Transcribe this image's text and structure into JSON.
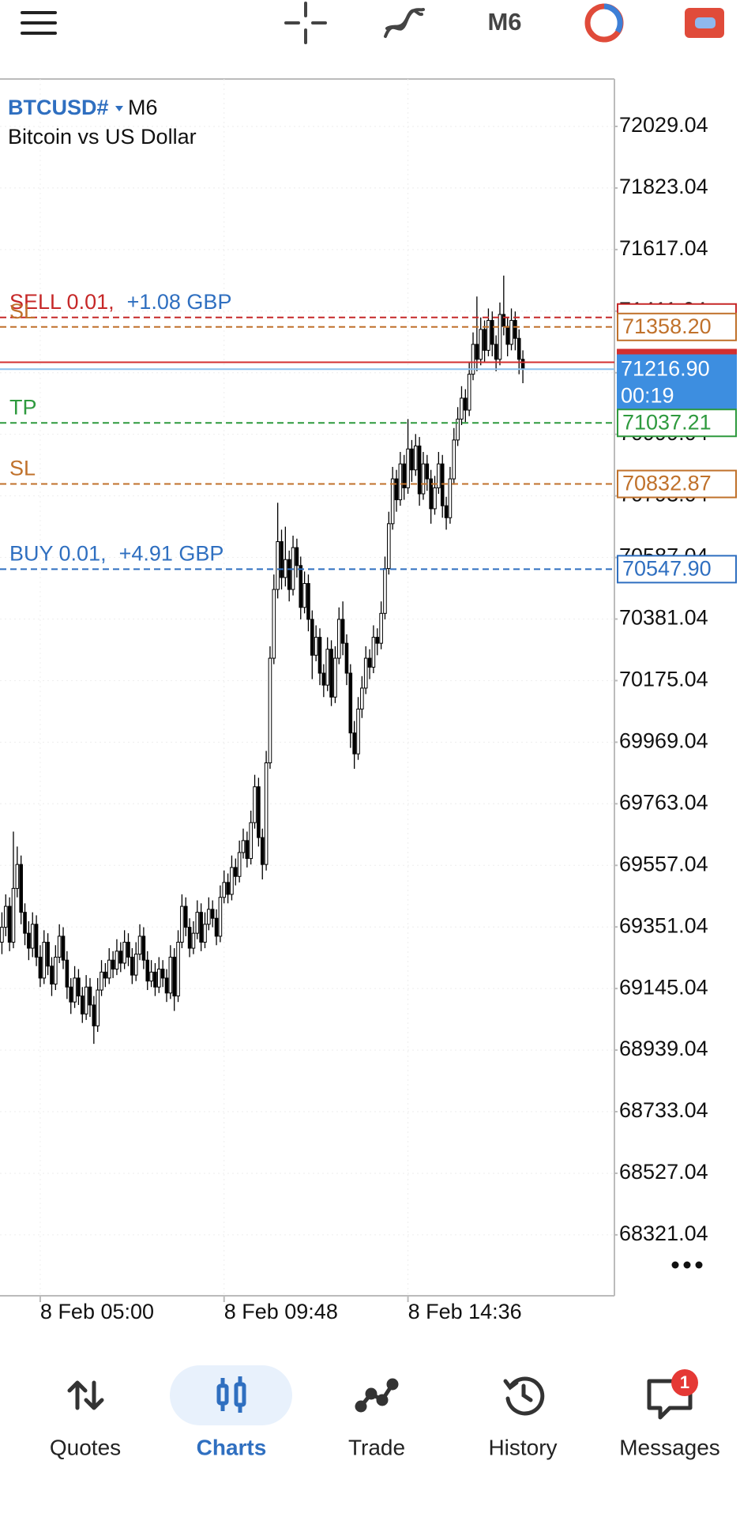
{
  "top_bar": {
    "timeframe": "M6"
  },
  "chart_data": {
    "type": "candlestick",
    "symbol": "BTCUSD#",
    "timeframe": "M6",
    "description": "Bitcoin vs US Dollar",
    "xlim": [
      -0.5,
      159.9
    ],
    "xticks": [
      {
        "value": 10,
        "label": "8 Feb 05:00"
      },
      {
        "value": 58,
        "label": "8 Feb 09:48"
      },
      {
        "value": 106,
        "label": "8 Feb 14:36"
      }
    ],
    "ylim": [
      68117.2,
      72187.6
    ],
    "yticks": [
      72029.04,
      71823.04,
      71617.04,
      71411.04,
      71205.04,
      70999.04,
      70793.04,
      70587.04,
      70381.04,
      70175.04,
      69969.04,
      69763.04,
      69557.04,
      69351.04,
      69145.04,
      68939.04,
      68733.04,
      68527.04,
      68321.04
    ],
    "grid": true,
    "candle_color": "#000000",
    "candles": [
      [
        69300,
        69400,
        69260,
        69350
      ],
      [
        69350,
        69460,
        69320,
        69420
      ],
      [
        69420,
        69450,
        69270,
        69300
      ],
      [
        69300,
        69670,
        69280,
        69480
      ],
      [
        69480,
        69620,
        69450,
        69560
      ],
      [
        69560,
        69590,
        69360,
        69400
      ],
      [
        69400,
        69430,
        69290,
        69330
      ],
      [
        69330,
        69370,
        69240,
        69280
      ],
      [
        69280,
        69400,
        69250,
        69360
      ],
      [
        69360,
        69390,
        69220,
        69250
      ],
      [
        69250,
        69290,
        69150,
        69180
      ],
      [
        69180,
        69340,
        69160,
        69300
      ],
      [
        69300,
        69330,
        69190,
        69220
      ],
      [
        69220,
        69250,
        69120,
        69160
      ],
      [
        69160,
        69290,
        69140,
        69250
      ],
      [
        69250,
        69360,
        69230,
        69320
      ],
      [
        69320,
        69350,
        69210,
        69240
      ],
      [
        69240,
        69270,
        69110,
        69150
      ],
      [
        69150,
        69180,
        69060,
        69100
      ],
      [
        69100,
        69220,
        69080,
        69180
      ],
      [
        69180,
        69210,
        69090,
        69120
      ],
      [
        69120,
        69150,
        69030,
        69060
      ],
      [
        69060,
        69190,
        69040,
        69150
      ],
      [
        69150,
        69180,
        69050,
        69090
      ],
      [
        69090,
        69120,
        68960,
        69020
      ],
      [
        69020,
        69180,
        69000,
        69140
      ],
      [
        69140,
        69240,
        69120,
        69200
      ],
      [
        69200,
        69230,
        69150,
        69180
      ],
      [
        69180,
        69280,
        69160,
        69240
      ],
      [
        69240,
        69270,
        69180,
        69210
      ],
      [
        69210,
        69310,
        69190,
        69270
      ],
      [
        69270,
        69300,
        69200,
        69230
      ],
      [
        69230,
        69340,
        69210,
        69300
      ],
      [
        69300,
        69330,
        69220,
        69250
      ],
      [
        69250,
        69280,
        69160,
        69190
      ],
      [
        69190,
        69300,
        69170,
        69260
      ],
      [
        69260,
        69360,
        69240,
        69320
      ],
      [
        69320,
        69350,
        69210,
        69240
      ],
      [
        69240,
        69270,
        69140,
        69170
      ],
      [
        69170,
        69240,
        69150,
        69200
      ],
      [
        69200,
        69230,
        69120,
        69150
      ],
      [
        69150,
        69250,
        69130,
        69210
      ],
      [
        69210,
        69240,
        69150,
        69180
      ],
      [
        69180,
        69210,
        69100,
        69130
      ],
      [
        69130,
        69290,
        69110,
        69250
      ],
      [
        69250,
        69280,
        69070,
        69120
      ],
      [
        69120,
        69340,
        69100,
        69300
      ],
      [
        69300,
        69460,
        69280,
        69420
      ],
      [
        69420,
        69450,
        69320,
        69350
      ],
      [
        69350,
        69380,
        69250,
        69280
      ],
      [
        69280,
        69370,
        69260,
        69330
      ],
      [
        69330,
        69440,
        69310,
        69400
      ],
      [
        69400,
        69430,
        69270,
        69300
      ],
      [
        69300,
        69400,
        69280,
        69360
      ],
      [
        69360,
        69450,
        69340,
        69410
      ],
      [
        69410,
        69440,
        69350,
        69380
      ],
      [
        69380,
        69410,
        69290,
        69320
      ],
      [
        69320,
        69490,
        69300,
        69450
      ],
      [
        69450,
        69540,
        69430,
        69500
      ],
      [
        69500,
        69530,
        69430,
        69460
      ],
      [
        69460,
        69590,
        69440,
        69550
      ],
      [
        69550,
        69580,
        69490,
        69520
      ],
      [
        69520,
        69640,
        69500,
        69600
      ],
      [
        69600,
        69680,
        69580,
        69640
      ],
      [
        69640,
        69670,
        69550,
        69580
      ],
      [
        69580,
        69740,
        69560,
        69700
      ],
      [
        69700,
        69860,
        69680,
        69820
      ],
      [
        69820,
        69850,
        69620,
        69650
      ],
      [
        69650,
        69680,
        69510,
        69560
      ],
      [
        69560,
        69940,
        69540,
        69900
      ],
      [
        69900,
        70290,
        69880,
        70250
      ],
      [
        70250,
        70530,
        70230,
        70480
      ],
      [
        70480,
        70770,
        70450,
        70640
      ],
      [
        70640,
        70680,
        70480,
        70520
      ],
      [
        70520,
        70690,
        70490,
        70580
      ],
      [
        70580,
        70610,
        70440,
        70480
      ],
      [
        70480,
        70660,
        70460,
        70620
      ],
      [
        70620,
        70650,
        70520,
        70560
      ],
      [
        70560,
        70590,
        70380,
        70420
      ],
      [
        70420,
        70540,
        70400,
        70500
      ],
      [
        70500,
        70530,
        70340,
        70380
      ],
      [
        70380,
        70410,
        70180,
        70260
      ],
      [
        70260,
        70360,
        70240,
        70320
      ],
      [
        70320,
        70350,
        70160,
        70200
      ],
      [
        70200,
        70230,
        70120,
        70160
      ],
      [
        70160,
        70320,
        70140,
        70280
      ],
      [
        70280,
        70310,
        70090,
        70120
      ],
      [
        70120,
        70290,
        70100,
        70250
      ],
      [
        70250,
        70420,
        70230,
        70380
      ],
      [
        70380,
        70440,
        70260,
        70300
      ],
      [
        70300,
        70330,
        70160,
        70200
      ],
      [
        70200,
        70230,
        69950,
        70000
      ],
      [
        70000,
        70040,
        69880,
        69930
      ],
      [
        69930,
        70120,
        69910,
        70080
      ],
      [
        70080,
        70190,
        70050,
        70150
      ],
      [
        70150,
        70290,
        70130,
        70250
      ],
      [
        70250,
        70280,
        70180,
        70220
      ],
      [
        70220,
        70360,
        70200,
        70320
      ],
      [
        70320,
        70350,
        70260,
        70300
      ],
      [
        70300,
        70440,
        70280,
        70400
      ],
      [
        70400,
        70590,
        70380,
        70550
      ],
      [
        70550,
        70740,
        70530,
        70700
      ],
      [
        70700,
        70890,
        70680,
        70850
      ],
      [
        70850,
        70880,
        70740,
        70780
      ],
      [
        70780,
        70940,
        70760,
        70900
      ],
      [
        70900,
        70930,
        70780,
        70820
      ],
      [
        70820,
        71050,
        70800,
        70950
      ],
      [
        70950,
        70980,
        70840,
        70880
      ],
      [
        70880,
        71000,
        70860,
        70960
      ],
      [
        70960,
        70990,
        70760,
        70800
      ],
      [
        70800,
        70940,
        70780,
        70900
      ],
      [
        70900,
        70930,
        70810,
        70850
      ],
      [
        70850,
        70880,
        70700,
        70750
      ],
      [
        70750,
        70860,
        70730,
        70820
      ],
      [
        70820,
        70940,
        70800,
        70900
      ],
      [
        70900,
        70930,
        70720,
        70760
      ],
      [
        70760,
        70790,
        70680,
        70720
      ],
      [
        70720,
        70890,
        70700,
        70850
      ],
      [
        70850,
        71020,
        70830,
        70980
      ],
      [
        70980,
        71090,
        70960,
        71050
      ],
      [
        71050,
        71160,
        71030,
        71120
      ],
      [
        71120,
        71150,
        71040,
        71080
      ],
      [
        71080,
        71240,
        71060,
        71200
      ],
      [
        71200,
        71340,
        71180,
        71300
      ],
      [
        71300,
        71460,
        71210,
        71250
      ],
      [
        71250,
        71390,
        71230,
        71350
      ],
      [
        71350,
        71380,
        71240,
        71280
      ],
      [
        71280,
        71420,
        71260,
        71380
      ],
      [
        71380,
        71410,
        71260,
        71300
      ],
      [
        71300,
        71330,
        71210,
        71250
      ],
      [
        71250,
        71440,
        71230,
        71400
      ],
      [
        71400,
        71530,
        71330,
        71360
      ],
      [
        71360,
        71390,
        71260,
        71300
      ],
      [
        71300,
        71420,
        71280,
        71380
      ],
      [
        71380,
        71410,
        71280,
        71320
      ],
      [
        71320,
        71350,
        71200,
        71250
      ],
      [
        71250,
        71280,
        71170,
        71216.9
      ]
    ],
    "ask": {
      "value": 71240,
      "color": "#d32f2f"
    },
    "bid": {
      "value": 71216.9,
      "label": "71216.90",
      "timer": "00:19",
      "color": "#3d8ee0"
    },
    "orders": [
      {
        "name": "SELL 0.01,",
        "profit": "+1.08 GBP",
        "value": 71390,
        "color": "#c62828",
        "profit_color": "#2f6fc0"
      },
      {
        "name": "BUY 0.01,",
        "profit": "+4.91 GBP",
        "value": 70547.9,
        "label": "70547.90",
        "color": "#2f6fc0",
        "profit_color": "#2f6fc0"
      }
    ],
    "levels": [
      {
        "name": "SL",
        "value": 71358.2,
        "label": "71358.20",
        "color": "#c0712b"
      },
      {
        "name": "TP",
        "value": 71037.21,
        "label": "71037.21",
        "color": "#2e9a3e"
      },
      {
        "name": "SL",
        "value": 70832.87,
        "label": "70832.87",
        "color": "#c0712b"
      }
    ]
  },
  "nav": [
    {
      "label": "Quotes"
    },
    {
      "label": "Charts"
    },
    {
      "label": "Trade"
    },
    {
      "label": "History"
    },
    {
      "label": "Messages",
      "badge": "1"
    }
  ]
}
